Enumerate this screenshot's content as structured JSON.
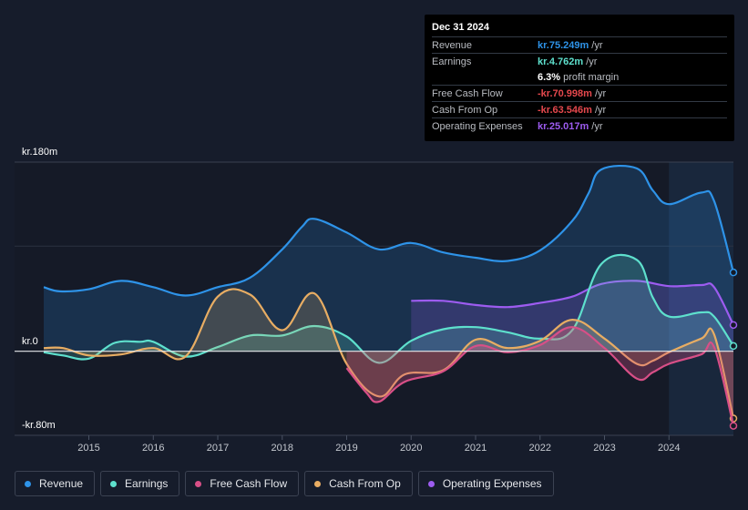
{
  "tooltip": {
    "date": "Dec 31 2024",
    "rows": [
      {
        "label": "Revenue",
        "value": "kr.75.249m",
        "unit": "/yr",
        "color": "#2e93e8"
      },
      {
        "label": "Earnings",
        "value": "kr.4.762m",
        "unit": "/yr",
        "color": "#5ee0cd"
      },
      {
        "label": "",
        "value": "6.3%",
        "unit": "profit margin",
        "color": "#ffffff"
      },
      {
        "label": "Free Cash Flow",
        "value": "-kr.70.998m",
        "unit": "/yr",
        "color": "#e5484d"
      },
      {
        "label": "Cash From Op",
        "value": "-kr.63.546m",
        "unit": "/yr",
        "color": "#e5484d"
      },
      {
        "label": "Operating Expenses",
        "value": "kr.25.017m",
        "unit": "/yr",
        "color": "#9d5cf0"
      }
    ]
  },
  "legend": [
    {
      "label": "Revenue",
      "color": "#2e93e8"
    },
    {
      "label": "Earnings",
      "color": "#5ee0cd"
    },
    {
      "label": "Free Cash Flow",
      "color": "#d84f87"
    },
    {
      "label": "Cash From Op",
      "color": "#e8ad63"
    },
    {
      "label": "Operating Expenses",
      "color": "#9d5cf0"
    }
  ],
  "chart_data": {
    "type": "area",
    "title": "",
    "y_top_label": "kr.180m",
    "y_zero_label": "kr.0",
    "y_bottom_label": "-kr.80m",
    "ylim": [
      -80,
      180
    ],
    "xlim": [
      2014.3,
      2025.0
    ],
    "x_ticks": [
      {
        "value": 2015,
        "label": "2015"
      },
      {
        "value": 2016,
        "label": "2016"
      },
      {
        "value": 2017,
        "label": "2017"
      },
      {
        "value": 2018,
        "label": "2018"
      },
      {
        "value": 2019,
        "label": "2019"
      },
      {
        "value": 2020,
        "label": "2020"
      },
      {
        "value": 2021,
        "label": "2021"
      },
      {
        "value": 2022,
        "label": "2022"
      },
      {
        "value": 2023,
        "label": "2023"
      },
      {
        "value": 2024,
        "label": "2024"
      }
    ],
    "highlight_start": 2024.0,
    "series": [
      {
        "name": "Revenue",
        "color": "#2e93e8",
        "fill": true,
        "points": [
          [
            2014.3,
            61
          ],
          [
            2014.55,
            57
          ],
          [
            2015.0,
            59
          ],
          [
            2015.5,
            67
          ],
          [
            2016.0,
            61
          ],
          [
            2016.5,
            53
          ],
          [
            2017.0,
            61
          ],
          [
            2017.5,
            70
          ],
          [
            2018.0,
            97
          ],
          [
            2018.3,
            118
          ],
          [
            2018.5,
            126
          ],
          [
            2019.0,
            113
          ],
          [
            2019.5,
            97
          ],
          [
            2020.0,
            103
          ],
          [
            2020.5,
            94
          ],
          [
            2021.0,
            89
          ],
          [
            2021.5,
            86
          ],
          [
            2022.0,
            96
          ],
          [
            2022.5,
            124
          ],
          [
            2022.75,
            150
          ],
          [
            2022.95,
            173
          ],
          [
            2023.5,
            174
          ],
          [
            2023.75,
            153
          ],
          [
            2024.0,
            140
          ],
          [
            2024.5,
            151
          ],
          [
            2024.7,
            143
          ],
          [
            2025.0,
            75
          ]
        ]
      },
      {
        "name": "Earnings",
        "color": "#5ee0cd",
        "fill": true,
        "points": [
          [
            2014.3,
            -1
          ],
          [
            2014.6,
            -4
          ],
          [
            2015.0,
            -7
          ],
          [
            2015.4,
            8
          ],
          [
            2015.8,
            9
          ],
          [
            2016.0,
            9
          ],
          [
            2016.5,
            -5
          ],
          [
            2017.0,
            4
          ],
          [
            2017.5,
            15
          ],
          [
            2018.0,
            15
          ],
          [
            2018.5,
            24
          ],
          [
            2019.0,
            14
          ],
          [
            2019.5,
            -11
          ],
          [
            2020.0,
            10
          ],
          [
            2020.5,
            21
          ],
          [
            2021.0,
            23
          ],
          [
            2021.5,
            18
          ],
          [
            2022.0,
            12
          ],
          [
            2022.5,
            20
          ],
          [
            2022.95,
            83
          ],
          [
            2023.5,
            87
          ],
          [
            2023.75,
            51
          ],
          [
            2024.0,
            33
          ],
          [
            2024.5,
            37
          ],
          [
            2024.7,
            33
          ],
          [
            2025.0,
            5
          ]
        ]
      },
      {
        "name": "Free Cash Flow",
        "color": "#d84f87",
        "fill": true,
        "points": [
          [
            2019.0,
            -16
          ],
          [
            2019.3,
            -39
          ],
          [
            2019.5,
            -48
          ],
          [
            2019.9,
            -29
          ],
          [
            2020.5,
            -19
          ],
          [
            2021.0,
            5
          ],
          [
            2021.5,
            -1
          ],
          [
            2022.0,
            6
          ],
          [
            2022.5,
            23
          ],
          [
            2023.0,
            3
          ],
          [
            2023.5,
            -26
          ],
          [
            2023.75,
            -20
          ],
          [
            2024.0,
            -12
          ],
          [
            2024.5,
            -3
          ],
          [
            2024.7,
            4
          ],
          [
            2025.0,
            -71
          ]
        ]
      },
      {
        "name": "Cash From Op",
        "color": "#e8ad63",
        "fill": true,
        "points": [
          [
            2014.3,
            3
          ],
          [
            2014.6,
            3
          ],
          [
            2015.0,
            -4
          ],
          [
            2015.5,
            -3
          ],
          [
            2016.0,
            3
          ],
          [
            2016.5,
            -5
          ],
          [
            2017.0,
            52
          ],
          [
            2017.5,
            54
          ],
          [
            2018.0,
            20
          ],
          [
            2018.5,
            55
          ],
          [
            2019.0,
            -12
          ],
          [
            2019.5,
            -43
          ],
          [
            2019.9,
            -22
          ],
          [
            2020.5,
            -18
          ],
          [
            2021.0,
            11
          ],
          [
            2021.5,
            3
          ],
          [
            2022.0,
            10
          ],
          [
            2022.5,
            30
          ],
          [
            2023.0,
            12
          ],
          [
            2023.5,
            -12
          ],
          [
            2023.75,
            -9
          ],
          [
            2024.0,
            -1
          ],
          [
            2024.5,
            12
          ],
          [
            2024.7,
            16
          ],
          [
            2025.0,
            -64
          ]
        ]
      },
      {
        "name": "Operating Expenses",
        "color": "#9d5cf0",
        "fill": true,
        "points": [
          [
            2020.0,
            48
          ],
          [
            2020.5,
            48
          ],
          [
            2021.0,
            44
          ],
          [
            2021.5,
            42
          ],
          [
            2022.0,
            46
          ],
          [
            2022.5,
            52
          ],
          [
            2022.95,
            64
          ],
          [
            2023.5,
            67
          ],
          [
            2024.0,
            62
          ],
          [
            2024.5,
            63
          ],
          [
            2024.7,
            61
          ],
          [
            2025.0,
            25
          ]
        ]
      }
    ]
  }
}
